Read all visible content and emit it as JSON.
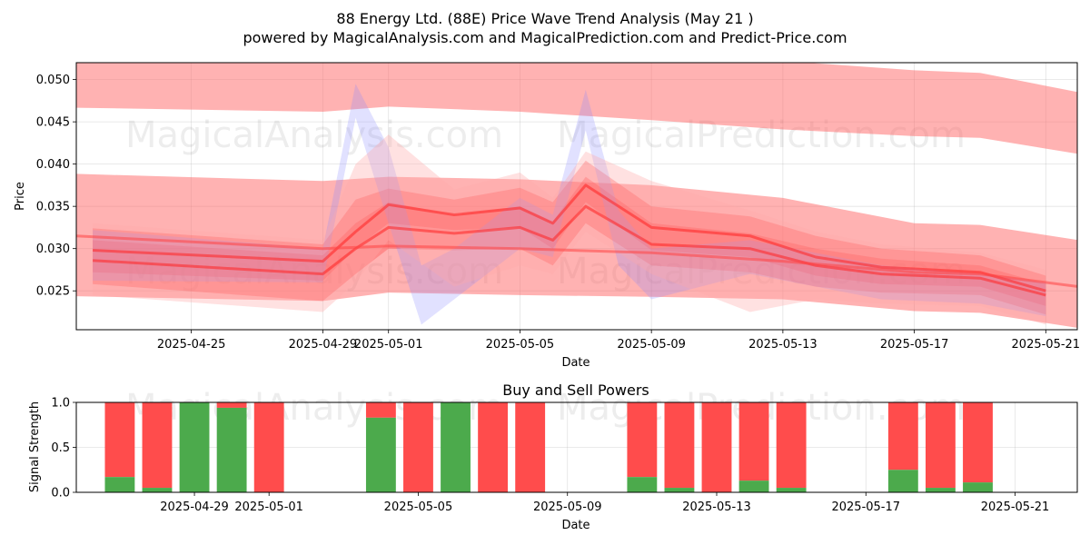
{
  "chart_data": [
    {
      "type": "area",
      "title": "88 Energy Ltd. (88E) Price Wave Trend Analysis (May 21 )",
      "subtitle": "powered by MagicalAnalysis.com and MagicalPrediction.com and Predict-Price.com",
      "xlabel": "Date",
      "ylabel": "Price",
      "xlim": [
        "2025-04-21T12:00",
        "2025-05-21T23:00"
      ],
      "ylim": [
        0.0204,
        0.052
      ],
      "x_ticks": [
        "2025-04-25",
        "2025-04-29",
        "2025-05-01",
        "2025-05-05",
        "2025-05-09",
        "2025-05-13",
        "2025-05-17",
        "2025-05-21"
      ],
      "y_ticks": [
        "0.025",
        "0.030",
        "0.035",
        "0.040",
        "0.045",
        "0.050"
      ],
      "grid": true,
      "watermarks": [
        "MagicalAnalysis.com",
        "MagicalPrediction.com",
        "MagicalAnalysis.com",
        "MagicalPrediction.com"
      ],
      "bands": [
        {
          "name": "upper-channel",
          "color": "#ff6666",
          "opacity": 0.5,
          "x": [
            "2025-04-21",
            "2025-04-29",
            "2025-05-01",
            "2025-05-05",
            "2025-05-09",
            "2025-05-13",
            "2025-05-17",
            "2025-05-19",
            "2025-05-22"
          ],
          "upper": [
            0.0535,
            0.0535,
            0.0535,
            0.0535,
            0.0535,
            0.0522,
            0.0511,
            0.0508,
            0.0485
          ],
          "lower": [
            0.0467,
            0.0462,
            0.0468,
            0.0462,
            0.0452,
            0.0441,
            0.0433,
            0.0431,
            0.0412
          ]
        },
        {
          "name": "main-channel",
          "color": "#ff6666",
          "opacity": 0.5,
          "x": [
            "2025-04-21",
            "2025-04-29",
            "2025-05-01",
            "2025-05-05",
            "2025-05-09",
            "2025-05-13",
            "2025-05-17",
            "2025-05-19",
            "2025-05-22"
          ],
          "upper": [
            0.0389,
            0.038,
            0.0385,
            0.0382,
            0.0375,
            0.036,
            0.033,
            0.0328,
            0.031
          ],
          "lower": [
            0.0244,
            0.0238,
            0.0248,
            0.0245,
            0.0243,
            0.024,
            0.0226,
            0.0224,
            0.0206
          ]
        },
        {
          "name": "wave-band-red-1",
          "color": "#ff4444",
          "opacity": 0.35,
          "x": [
            "2025-04-22",
            "2025-04-29",
            "2025-04-30",
            "2025-05-01",
            "2025-05-03",
            "2025-05-05",
            "2025-05-06",
            "2025-05-07",
            "2025-05-09",
            "2025-05-12",
            "2025-05-14",
            "2025-05-16",
            "2025-05-19",
            "2025-05-21"
          ],
          "upper": [
            0.0324,
            0.0305,
            0.0358,
            0.0371,
            0.0358,
            0.0372,
            0.0355,
            0.0404,
            0.035,
            0.0338,
            0.0315,
            0.03,
            0.0292,
            0.0268
          ],
          "lower": [
            0.0272,
            0.0262,
            0.03,
            0.033,
            0.0322,
            0.0325,
            0.03,
            0.0355,
            0.0298,
            0.029,
            0.0268,
            0.0258,
            0.0255,
            0.0232
          ]
        },
        {
          "name": "wave-band-red-2",
          "color": "#ff3333",
          "opacity": 0.3,
          "x": [
            "2025-04-22",
            "2025-04-29",
            "2025-04-30",
            "2025-05-01",
            "2025-05-03",
            "2025-05-05",
            "2025-05-06",
            "2025-05-07",
            "2025-05-09",
            "2025-05-12",
            "2025-05-14",
            "2025-05-16",
            "2025-05-19",
            "2025-05-21"
          ],
          "upper": [
            0.031,
            0.0292,
            0.033,
            0.0355,
            0.034,
            0.035,
            0.0332,
            0.0385,
            0.033,
            0.0318,
            0.03,
            0.0288,
            0.028,
            0.0258
          ],
          "lower": [
            0.0258,
            0.0238,
            0.027,
            0.03,
            0.0298,
            0.03,
            0.028,
            0.033,
            0.028,
            0.0272,
            0.0255,
            0.0248,
            0.0245,
            0.0222
          ]
        },
        {
          "name": "wave-band-blue",
          "color": "#8888ff",
          "opacity": 0.25,
          "x": [
            "2025-04-22",
            "2025-04-29",
            "2025-04-30",
            "2025-05-01",
            "2025-05-02",
            "2025-05-03",
            "2025-05-05",
            "2025-05-06",
            "2025-05-07",
            "2025-05-08",
            "2025-05-09",
            "2025-05-12",
            "2025-05-16",
            "2025-05-19",
            "2025-05-21"
          ],
          "upper": [
            0.0322,
            0.03,
            0.0495,
            0.042,
            0.028,
            0.03,
            0.036,
            0.034,
            0.0488,
            0.0345,
            0.03,
            0.031,
            0.028,
            0.027,
            0.026
          ],
          "lower": [
            0.0262,
            0.026,
            0.0455,
            0.033,
            0.021,
            0.024,
            0.03,
            0.029,
            0.044,
            0.028,
            0.024,
            0.027,
            0.024,
            0.0235,
            0.022
          ]
        },
        {
          "name": "wave-band-pink",
          "color": "#ffaaaa",
          "opacity": 0.35,
          "x": [
            "2025-04-22",
            "2025-04-29",
            "2025-04-30",
            "2025-05-01",
            "2025-05-03",
            "2025-05-05",
            "2025-05-06",
            "2025-05-07",
            "2025-05-09",
            "2025-05-12",
            "2025-05-14",
            "2025-05-16",
            "2025-05-19",
            "2025-05-21"
          ],
          "upper": [
            0.033,
            0.031,
            0.04,
            0.0435,
            0.037,
            0.039,
            0.036,
            0.0415,
            0.038,
            0.0345,
            0.032,
            0.0305,
            0.0295,
            0.0275
          ],
          "lower": [
            0.0245,
            0.0225,
            0.026,
            0.031,
            0.0255,
            0.028,
            0.027,
            0.032,
            0.027,
            0.0225,
            0.024,
            0.0235,
            0.0232,
            0.021
          ]
        }
      ],
      "series": [
        {
          "name": "wave-line-1",
          "color": "#ff2222",
          "x": [
            "2025-04-22",
            "2025-04-29",
            "2025-04-30",
            "2025-05-01",
            "2025-05-03",
            "2025-05-05",
            "2025-05-06",
            "2025-05-07",
            "2025-05-09",
            "2025-05-12",
            "2025-05-14",
            "2025-05-16",
            "2025-05-19",
            "2025-05-21"
          ],
          "y": [
            0.0298,
            0.0285,
            0.032,
            0.0352,
            0.034,
            0.0348,
            0.033,
            0.0375,
            0.0325,
            0.0315,
            0.029,
            0.0278,
            0.0272,
            0.025
          ]
        },
        {
          "name": "wave-line-2",
          "color": "#ff2222",
          "x": [
            "2025-04-22",
            "2025-04-29",
            "2025-04-30",
            "2025-05-01",
            "2025-05-03",
            "2025-05-05",
            "2025-05-06",
            "2025-05-07",
            "2025-05-09",
            "2025-05-12",
            "2025-05-14",
            "2025-05-16",
            "2025-05-19",
            "2025-05-21"
          ],
          "y": [
            0.0286,
            0.027,
            0.03,
            0.0325,
            0.0318,
            0.0325,
            0.031,
            0.035,
            0.0305,
            0.03,
            0.028,
            0.027,
            0.0265,
            0.0245
          ]
        },
        {
          "name": "trend-line",
          "color": "#ff4444",
          "x": [
            "2025-04-21",
            "2025-04-29",
            "2025-05-01",
            "2025-05-05",
            "2025-05-09",
            "2025-05-13",
            "2025-05-17",
            "2025-05-19",
            "2025-05-22"
          ],
          "y": [
            0.0316,
            0.03,
            0.0303,
            0.03,
            0.0295,
            0.0285,
            0.0272,
            0.027,
            0.0255
          ]
        }
      ]
    },
    {
      "type": "bar",
      "title": "Buy and Sell Powers",
      "xlabel": "Date",
      "ylabel": "Signal Strength",
      "xlim": [
        "2025-04-25T20:00",
        "2025-05-22T16:00"
      ],
      "ylim": [
        0,
        1
      ],
      "x_ticks": [
        "2025-04-29",
        "2025-05-01",
        "2025-05-05",
        "2025-05-09",
        "2025-05-13",
        "2025-05-17",
        "2025-05-21"
      ],
      "y_ticks": [
        "0.0",
        "0.5",
        "1.0"
      ],
      "grid": true,
      "watermarks": [
        "MagicalAnalysis.com",
        "MagicalPrediction.com"
      ],
      "series": [
        {
          "name": "Buy",
          "color": "#4caa4c"
        },
        {
          "name": "Sell",
          "color": "#ff4c4c"
        }
      ],
      "bars": [
        {
          "date": "2025-04-27",
          "buy": 0.17
        },
        {
          "date": "2025-04-28",
          "buy": 0.05
        },
        {
          "date": "2025-04-29",
          "buy": 1.0
        },
        {
          "date": "2025-04-30",
          "buy": 0.94
        },
        {
          "date": "2025-05-01",
          "buy": 0.0
        },
        {
          "date": "2025-05-04",
          "buy": 0.83
        },
        {
          "date": "2025-05-05",
          "buy": 0.0
        },
        {
          "date": "2025-05-06",
          "buy": 1.0
        },
        {
          "date": "2025-05-07",
          "buy": 0.0
        },
        {
          "date": "2025-05-08",
          "buy": 0.0
        },
        {
          "date": "2025-05-11",
          "buy": 0.17
        },
        {
          "date": "2025-05-12",
          "buy": 0.05
        },
        {
          "date": "2025-05-13",
          "buy": 0.0
        },
        {
          "date": "2025-05-14",
          "buy": 0.13
        },
        {
          "date": "2025-05-15",
          "buy": 0.05
        },
        {
          "date": "2025-05-18",
          "buy": 0.25
        },
        {
          "date": "2025-05-19",
          "buy": 0.05
        },
        {
          "date": "2025-05-20",
          "buy": 0.11
        }
      ]
    }
  ]
}
